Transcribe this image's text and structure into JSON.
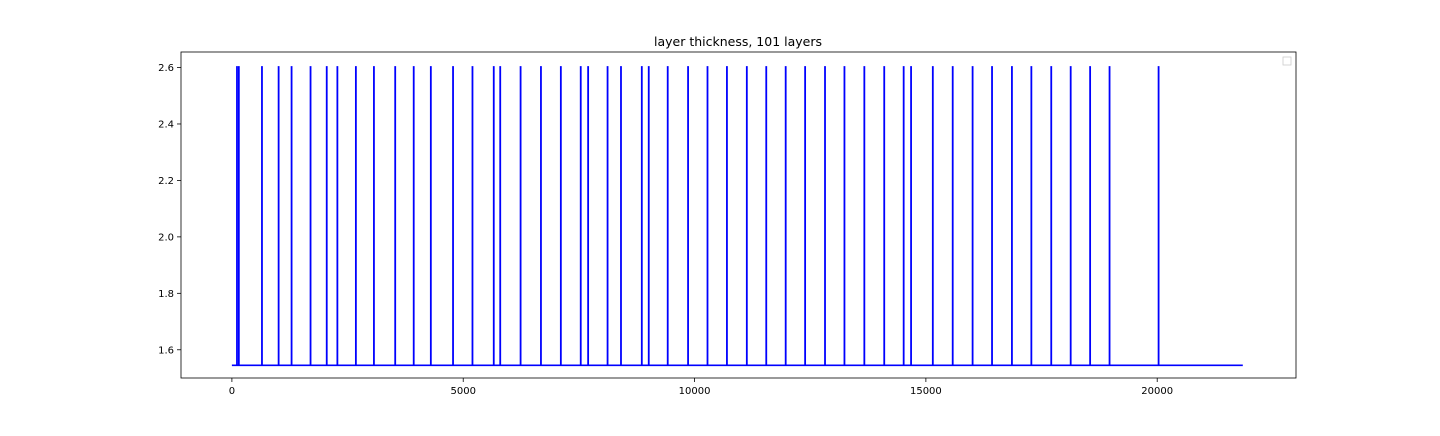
{
  "chart_data": {
    "type": "line",
    "title": "layer thickness, 101 layers",
    "xlabel": "",
    "ylabel": "",
    "xlim": [
      -1100,
      23000
    ],
    "ylim": [
      1.5,
      2.655
    ],
    "xticks": [
      0,
      5000,
      10000,
      15000,
      20000
    ],
    "xtick_labels": [
      "0",
      "5000",
      "10000",
      "15000",
      "20000"
    ],
    "yticks": [
      1.6,
      1.8,
      2.0,
      2.2,
      2.4,
      2.6
    ],
    "ytick_labels": [
      "1.6",
      "1.8",
      "2.0",
      "2.2",
      "2.4",
      "2.6"
    ],
    "grid": false,
    "legend": {
      "placement": "top-right",
      "entries": []
    },
    "series": [
      {
        "color": "#0000ff",
        "baseline": 1.545,
        "spike_value": 2.605,
        "x_end": 21850,
        "spike_x": [
          110,
          150,
          650,
          1010,
          1290,
          1700,
          2050,
          2280,
          2680,
          3070,
          3530,
          3930,
          4300,
          4780,
          5200,
          5660,
          5800,
          6240,
          6680,
          7110,
          7540,
          7700,
          8120,
          8410,
          8860,
          9010,
          9420,
          9860,
          10280,
          10700,
          11130,
          11550,
          11970,
          12390,
          12820,
          13240,
          13670,
          14100,
          14520,
          14680,
          15150,
          15580,
          16010,
          16430,
          16860,
          17280,
          17710,
          18130,
          18550,
          18970,
          20030
        ]
      }
    ]
  }
}
